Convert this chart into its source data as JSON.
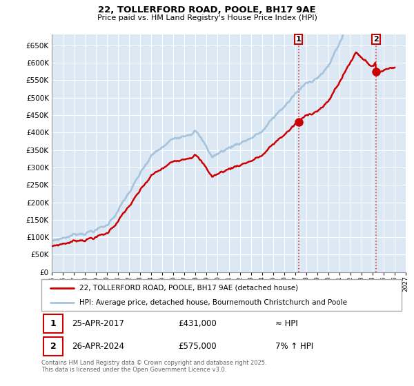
{
  "title": "22, TOLLERFORD ROAD, POOLE, BH17 9AE",
  "subtitle": "Price paid vs. HM Land Registry's House Price Index (HPI)",
  "ylabel_ticks": [
    "£0",
    "£50K",
    "£100K",
    "£150K",
    "£200K",
    "£250K",
    "£300K",
    "£350K",
    "£400K",
    "£450K",
    "£500K",
    "£550K",
    "£600K",
    "£650K"
  ],
  "ytick_values": [
    0,
    50000,
    100000,
    150000,
    200000,
    250000,
    300000,
    350000,
    400000,
    450000,
    500000,
    550000,
    600000,
    650000
  ],
  "ylim": [
    0,
    680000
  ],
  "xlim_start": 1995,
  "xlim_end": 2027,
  "sale1_year": 2017.32,
  "sale1_price": 431000,
  "sale2_year": 2024.32,
  "sale2_price": 575000,
  "hpi_color": "#a8c4dc",
  "property_color": "#cc0000",
  "dashed_line_color": "#cc4444",
  "background_color": "#dce9f5",
  "grid_color": "#ffffff",
  "legend_label1": "22, TOLLERFORD ROAD, POOLE, BH17 9AE (detached house)",
  "legend_label2": "HPI: Average price, detached house, Bournemouth Christchurch and Poole",
  "annotation1_date": "25-APR-2017",
  "annotation1_price": "£431,000",
  "annotation1_hpi": "≈ HPI",
  "annotation2_date": "26-APR-2024",
  "annotation2_price": "£575,000",
  "annotation2_hpi": "7% ↑ HPI",
  "footer": "Contains HM Land Registry data © Crown copyright and database right 2025.\nThis data is licensed under the Open Government Licence v3.0."
}
